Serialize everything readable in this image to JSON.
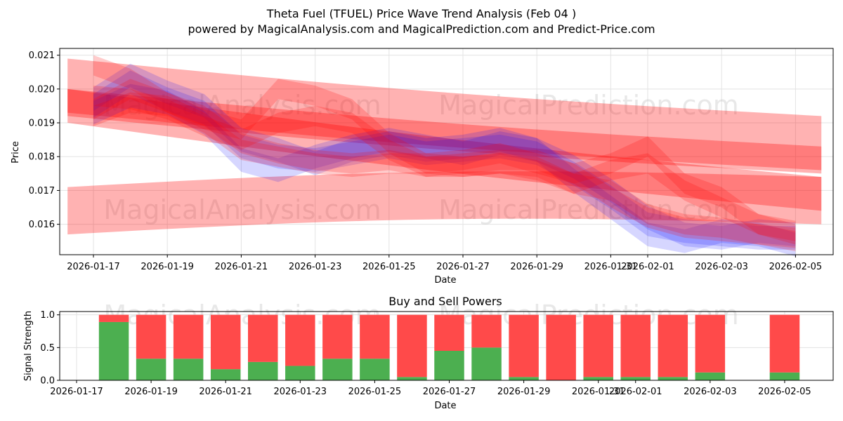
{
  "chart_data": [
    {
      "type": "area",
      "title_line1": "Theta Fuel (TFUEL) Price Wave Trend Analysis (Feb 04 )",
      "title_line2": "powered by MagicalAnalysis.com and MagicalPrediction.com and Predict-Price.com",
      "xlabel": "Date",
      "ylabel": "Price",
      "ylim": [
        0.0151,
        0.0212
      ],
      "yticks": [
        "0.016",
        "0.017",
        "0.018",
        "0.019",
        "0.020",
        "0.021"
      ],
      "ytick_values": [
        0.016,
        0.017,
        0.018,
        0.019,
        0.02,
        0.021
      ],
      "xticks": [
        "2026-01-17",
        "2026-01-19",
        "2026-01-21",
        "2026-01-23",
        "2026-01-25",
        "2026-01-27",
        "2026-01-29",
        "2026-01-31",
        "2026-02-01",
        "2026-02-03",
        "2026-02-05"
      ],
      "xtick_days": [
        0,
        2,
        4,
        6,
        8,
        10,
        12,
        14,
        15,
        17,
        19
      ],
      "watermarks": [
        "MagicalAnalysis.com",
        "MagicalPrediction.com",
        "MagicalAnalysis.com",
        "MagicalPrediction.com"
      ],
      "dates": [
        "2026-01-17",
        "2026-01-18",
        "2026-01-19",
        "2026-01-20",
        "2026-01-21",
        "2026-01-22",
        "2026-01-23",
        "2026-01-24",
        "2026-01-25",
        "2026-01-26",
        "2026-01-27",
        "2026-01-28",
        "2026-01-29",
        "2026-01-30",
        "2026-01-31",
        "2026-02-01",
        "2026-02-02",
        "2026-02-03",
        "2026-02-04",
        "2026-02-05"
      ],
      "price_series": [
        {
          "name": "blue-wave-1",
          "color": "#0000ff",
          "values": [
            0.0195,
            0.0202,
            0.0197,
            0.0193,
            0.0183,
            0.018,
            0.0179,
            0.0181,
            0.0183,
            0.0181,
            0.0182,
            0.0183,
            0.0181,
            0.0175,
            0.0168,
            0.016,
            0.0158,
            0.0157,
            0.0156,
            0.0156
          ]
        },
        {
          "name": "blue-wave-2",
          "color": "#0000ff",
          "values": [
            0.0193,
            0.0198,
            0.0196,
            0.019,
            0.0179,
            0.0176,
            0.018,
            0.0183,
            0.0185,
            0.0183,
            0.0181,
            0.0184,
            0.0182,
            0.0173,
            0.0165,
            0.0157,
            0.0155,
            0.0158,
            0.0157,
            0.0154
          ]
        },
        {
          "name": "blue-wave-3",
          "color": "#0000ff",
          "values": [
            0.0197,
            0.0204,
            0.0199,
            0.0195,
            0.0185,
            0.0182,
            0.0178,
            0.0182,
            0.0184,
            0.0182,
            0.0183,
            0.0185,
            0.0182,
            0.0177,
            0.017,
            0.0162,
            0.0157,
            0.0156,
            0.0158,
            0.0157
          ]
        },
        {
          "name": "red-wave-1",
          "color": "#ff0000",
          "values": [
            0.0194,
            0.02,
            0.0196,
            0.0192,
            0.0184,
            0.0181,
            0.0179,
            0.0178,
            0.0179,
            0.0177,
            0.0178,
            0.0179,
            0.0179,
            0.0175,
            0.0168,
            0.0162,
            0.0159,
            0.0158,
            0.0157,
            0.0156
          ]
        },
        {
          "name": "red-wave-2",
          "color": "#ff0000",
          "values": [
            0.0192,
            0.0196,
            0.0195,
            0.019,
            0.0182,
            0.018,
            0.0178,
            0.0177,
            0.0178,
            0.0178,
            0.0177,
            0.0178,
            0.0176,
            0.0172,
            0.017,
            0.0163,
            0.016,
            0.0159,
            0.0157,
            0.0155
          ]
        },
        {
          "name": "red-wave-3",
          "color": "#ff0000",
          "values": [
            0.0207,
            0.0203,
            0.0196,
            0.0191,
            0.0188,
            0.02,
            0.0198,
            0.0194,
            0.0184,
            0.0178,
            0.0179,
            0.0181,
            0.0178,
            0.0175,
            0.0178,
            0.0183,
            0.0172,
            0.0168,
            0.016,
            0.0158
          ]
        },
        {
          "name": "red-wave-4",
          "color": "#ff0000",
          "values": [
            0.0198,
            0.0197,
            0.0194,
            0.0189,
            0.0185,
            0.019,
            0.0192,
            0.019,
            0.0182,
            0.0177,
            0.0177,
            0.0178,
            0.0177,
            0.0172,
            0.0176,
            0.0178,
            0.017,
            0.0165,
            0.016,
            0.0157
          ]
        }
      ],
      "trend_bands": [
        {
          "name": "upper-trend-band",
          "color": "#ff0000",
          "start": 0.0201,
          "end": 0.0184,
          "width": 0.0008
        },
        {
          "name": "mid-trend-band",
          "color": "#ff0000",
          "start": 0.0196,
          "end": 0.0179,
          "width": 0.0004
        },
        {
          "name": "descending-trend-band",
          "color": "#ff0000",
          "start": 0.0195,
          "end": 0.0169,
          "width": 0.0005
        },
        {
          "name": "lower-trend-band",
          "color": "#ff0000",
          "start": 0.0164,
          "end": 0.0167,
          "width": 0.0007
        }
      ]
    },
    {
      "type": "bar",
      "title": "Buy and Sell Powers",
      "xlabel": "Date",
      "ylabel": "Signal Strength",
      "ylim": [
        0,
        1.05
      ],
      "yticks": [
        "0.0",
        "0.5",
        "1.0"
      ],
      "ytick_values": [
        0.0,
        0.5,
        1.0
      ],
      "xticks": [
        "2026-01-17",
        "2026-01-19",
        "2026-01-21",
        "2026-01-23",
        "2026-01-25",
        "2026-01-27",
        "2026-01-29",
        "2026-01-31",
        "2026-02-01",
        "2026-02-03",
        "2026-02-05"
      ],
      "xtick_days": [
        0,
        2,
        4,
        6,
        8,
        10,
        12,
        14,
        15,
        17,
        19
      ],
      "watermarks": [
        "MagicalAnalysis.com",
        "MagicalPrediction.com"
      ],
      "bar_days": [
        1,
        2,
        3,
        4,
        5,
        6,
        7,
        8,
        9,
        10,
        11,
        12,
        13,
        14,
        15,
        16,
        17,
        19
      ],
      "series": [
        {
          "name": "Buy",
          "color": "#4caf50",
          "values": [
            0.89,
            0.33,
            0.33,
            0.17,
            0.28,
            0.22,
            0.33,
            0.33,
            0.05,
            0.45,
            0.5,
            0.05,
            0.0,
            0.05,
            0.05,
            0.05,
            0.12,
            0.12
          ]
        },
        {
          "name": "Sell",
          "color": "#ff4a4a",
          "values": [
            0.11,
            0.67,
            0.67,
            0.83,
            0.72,
            0.78,
            0.67,
            0.67,
            0.95,
            0.55,
            0.5,
            0.95,
            1.0,
            0.95,
            0.95,
            0.95,
            0.88,
            0.88
          ]
        }
      ]
    }
  ]
}
